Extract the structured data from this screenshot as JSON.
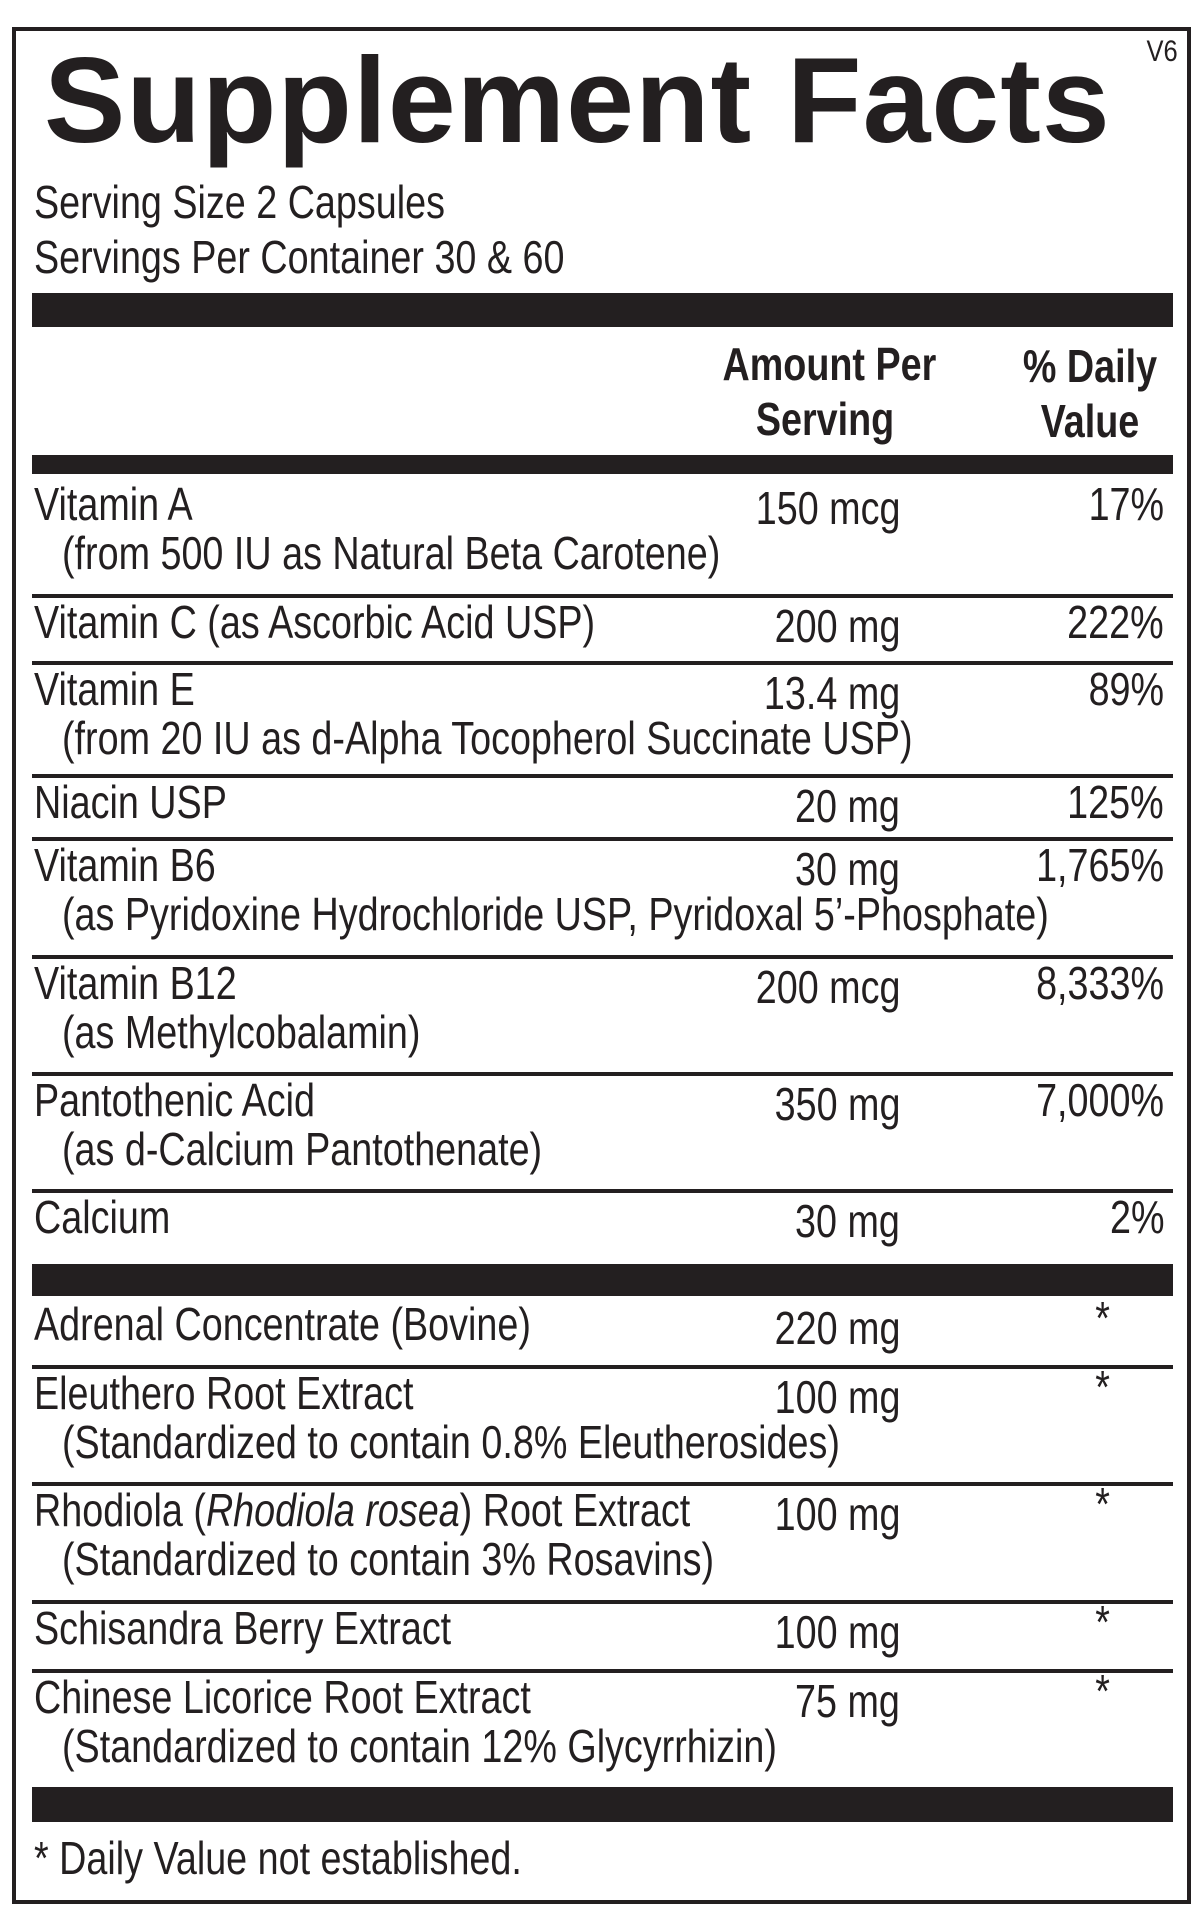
{
  "title": "Supplement Facts",
  "version": "V6",
  "serving_size": "Serving Size 2 Capsules",
  "servings_per_container": "Servings Per Container 30 & 60",
  "header": {
    "amount_line1": "Amount Per",
    "amount_line2": "Serving",
    "dv_line1": "% Daily",
    "dv_line2": "Value"
  },
  "nutrients": [
    {
      "name": "Vitamin A",
      "sub": "(from 500 IU as Natural Beta Carotene)",
      "amount": "150 mcg",
      "dv": "17%"
    },
    {
      "name": "Vitamin C (as Ascorbic Acid USP)",
      "amount": "200 mg",
      "dv": "222%"
    },
    {
      "name": "Vitamin E",
      "sub": "(from 20 IU as d-Alpha Tocopherol Succinate USP)",
      "amount": "13.4 mg",
      "dv": "89%"
    },
    {
      "name": "Niacin USP",
      "amount": "20 mg",
      "dv": "125%"
    },
    {
      "name": "Vitamin B6",
      "sub": "(as Pyridoxine Hydrochloride USP, Pyridoxal 5’-Phosphate)",
      "amount": "30 mg",
      "dv": "1,765%"
    },
    {
      "name": "Vitamin B12",
      "sub": "(as Methylcobalamin)",
      "amount": "200 mcg",
      "dv": "8,333%"
    },
    {
      "name": "Pantothenic Acid",
      "sub": "(as d-Calcium Pantothenate)",
      "amount": "350 mg",
      "dv": "7,000%"
    },
    {
      "name": "Calcium",
      "amount": "30 mg",
      "dv": "2%"
    }
  ],
  "other_ingredients": [
    {
      "name": "Adrenal Concentrate  (Bovine)",
      "amount": "220 mg",
      "dv": "*"
    },
    {
      "name": "Eleuthero Root Extract",
      "sub": "(Standardized to contain 0.8% Eleutherosides)",
      "amount": "100 mg",
      "dv": "*"
    },
    {
      "name_pre": "Rhodiola (",
      "name_italic": "Rhodiola rosea",
      "name_post": ") Root Extract",
      "sub": "(Standardized to contain 3% Rosavins)",
      "amount": "100 mg",
      "dv": "*"
    },
    {
      "name": "Schisandra Berry Extract",
      "amount": "100 mg",
      "dv": "*"
    },
    {
      "name": "Chinese Licorice Root Extract",
      "sub": "(Standardized to contain 12% Glycyrrhizin)",
      "amount": "75 mg",
      "dv": "*"
    }
  ],
  "footnote": "* Daily Value not established."
}
